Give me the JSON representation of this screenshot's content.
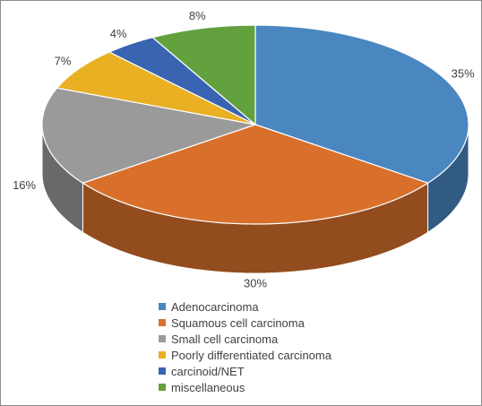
{
  "chart_data": {
    "type": "pie",
    "style": "3d",
    "categories": [
      "Adenocarcinoma",
      "Squamous cell carcinoma",
      "Small cell carcinoma",
      "Poorly differentiated carcinoma",
      "carcinoid/NET",
      "miscellaneous"
    ],
    "values": [
      35,
      30,
      16,
      7,
      4,
      8
    ],
    "labels": [
      "35%",
      "30%",
      "16%",
      "7%",
      "4%",
      "8%"
    ],
    "colors": [
      "#4a86c0",
      "#d8702c",
      "#9a9a9a",
      "#e8b022",
      "#3864b2",
      "#63a03e"
    ],
    "legend": {
      "position": "bottom",
      "entries": [
        "Adenocarcinoma",
        "Squamous cell carcinoma",
        "Small cell carcinoma",
        "Poorly differentiated carcinoma",
        "carcinoid/NET",
        "miscellaneous"
      ]
    }
  }
}
